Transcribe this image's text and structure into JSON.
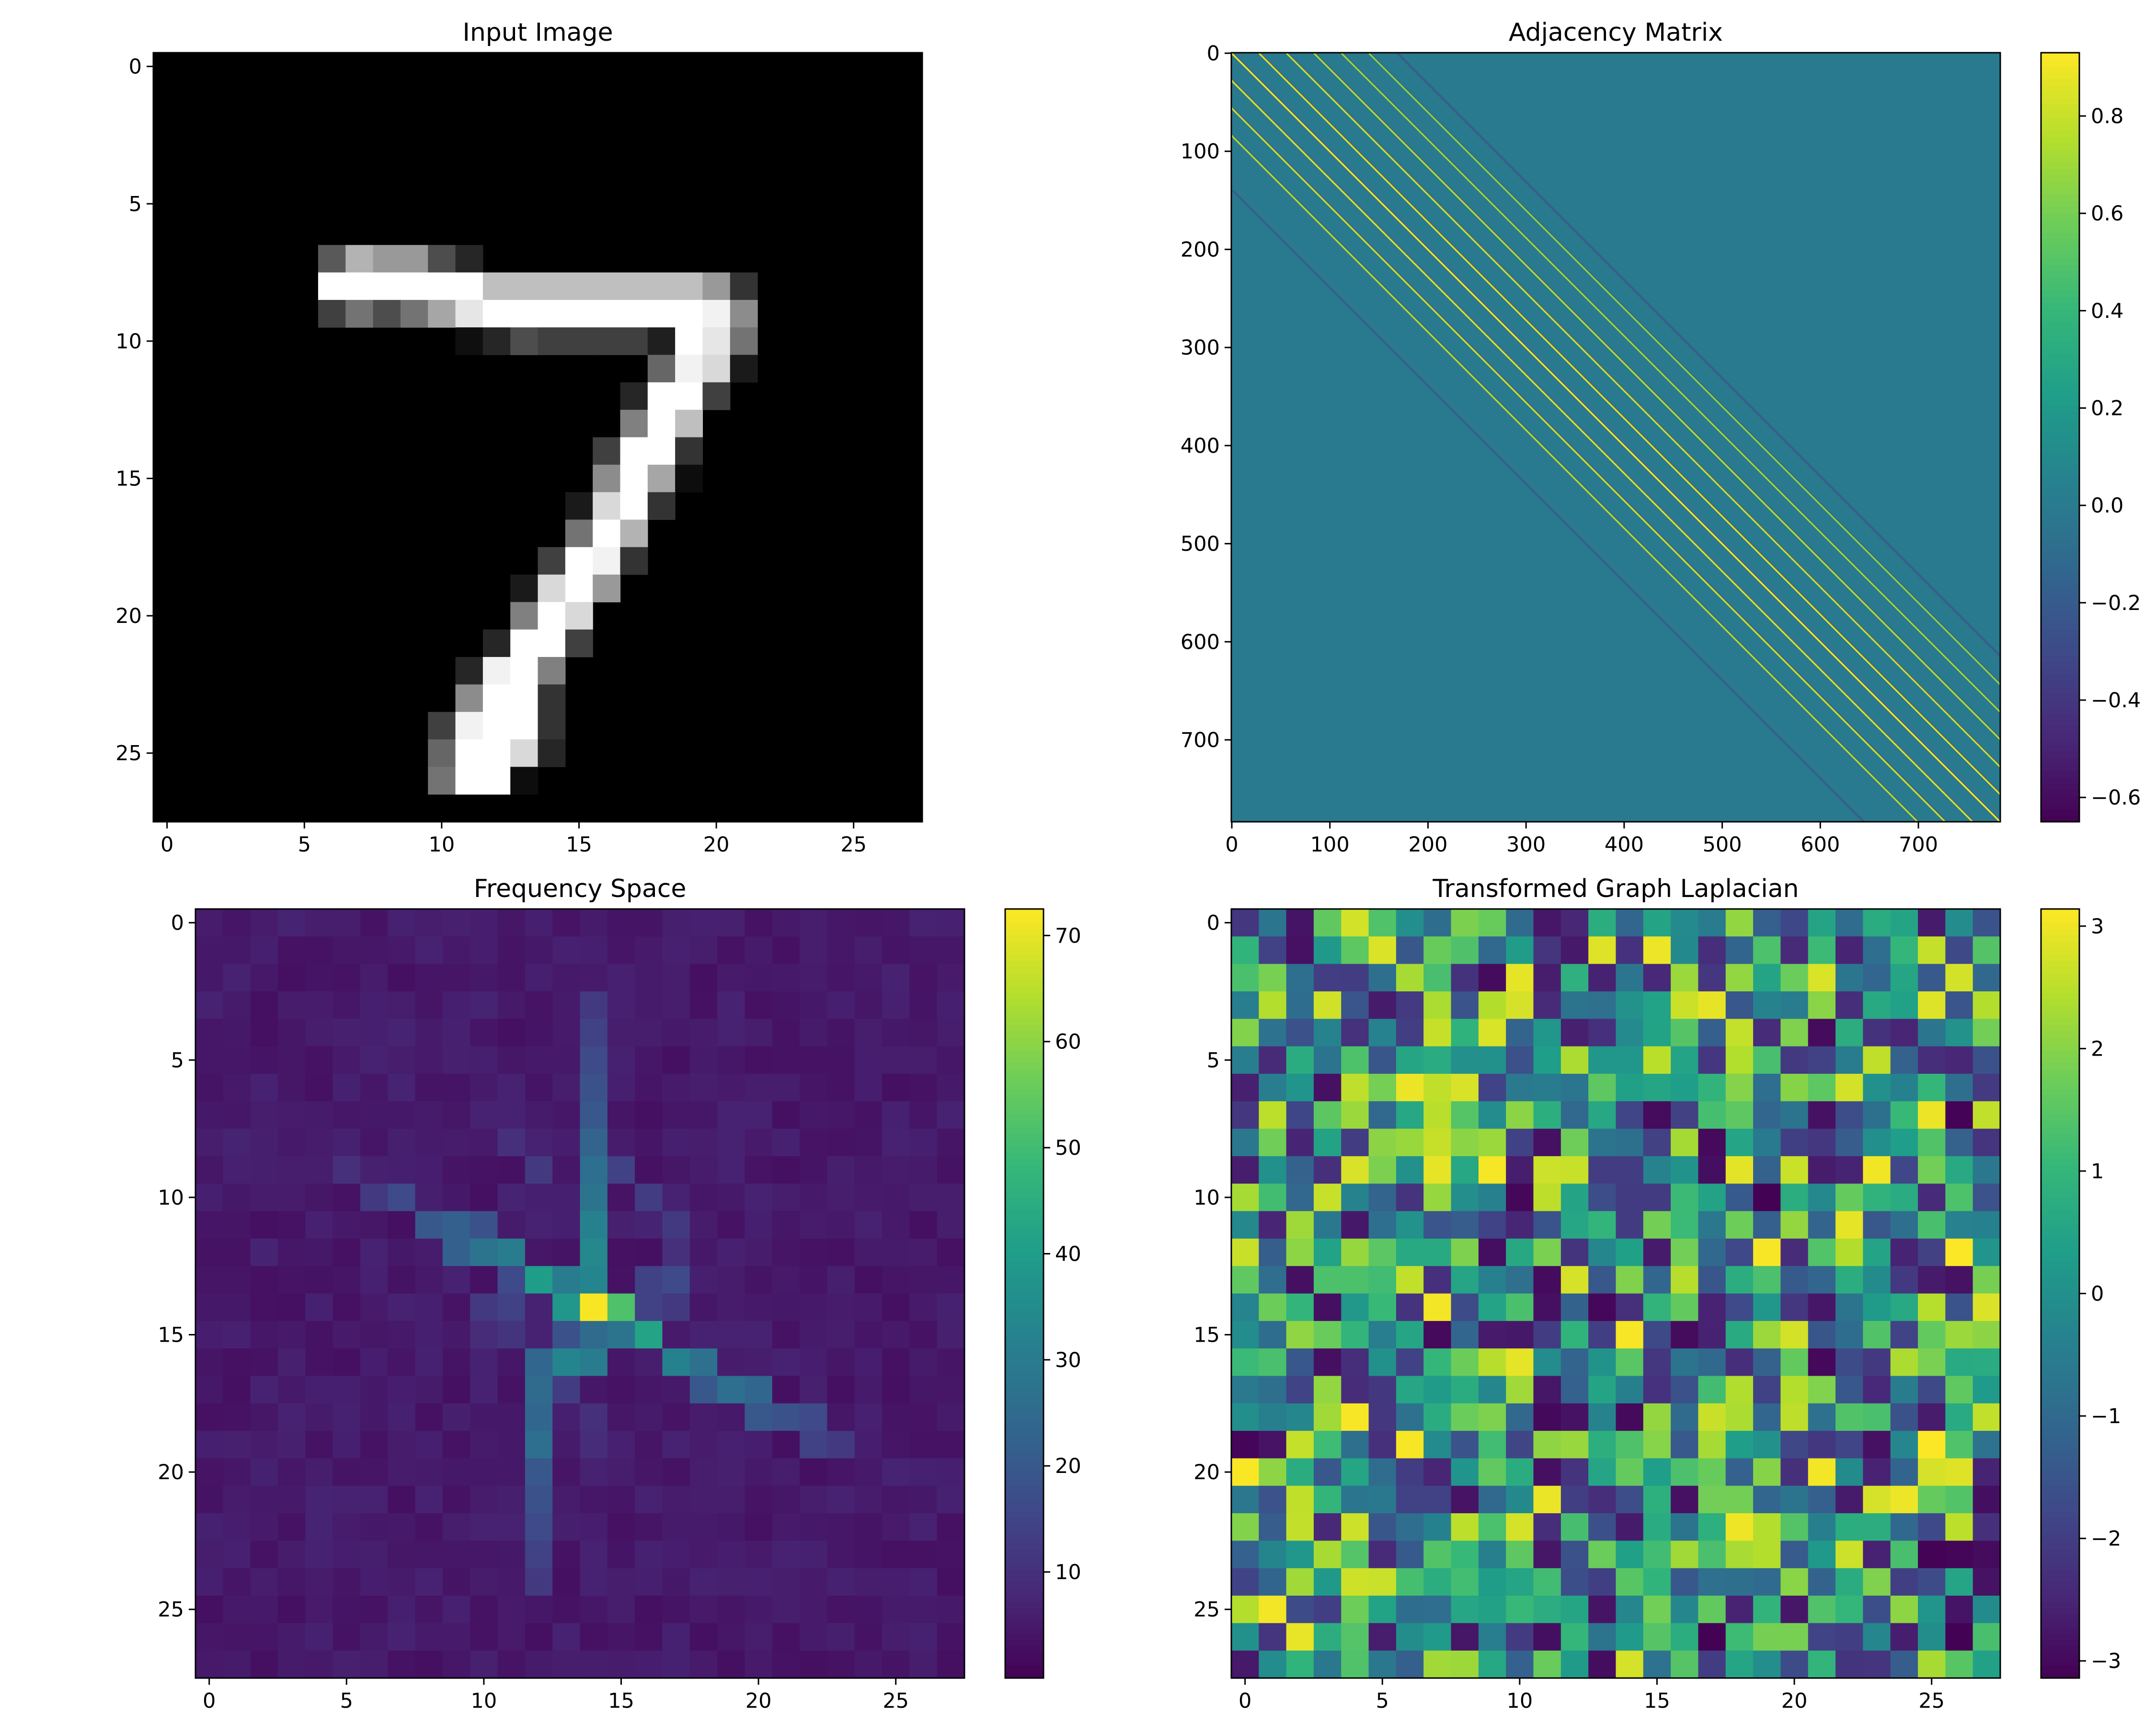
{
  "figure": {
    "background": "#ffffff"
  },
  "chart_data": [
    {
      "id": "input-image",
      "type": "heatmap",
      "title": "Input Image",
      "colormap": "gray",
      "grid": false,
      "legend": "none",
      "xlim": [
        -0.5,
        27.5
      ],
      "ylim": [
        27.5,
        -0.5
      ],
      "xticks": [
        0,
        5,
        10,
        15,
        20,
        25
      ],
      "xtick_labels": [
        "0",
        "5",
        "10",
        "15",
        "20",
        "25"
      ],
      "yticks": [
        0,
        5,
        10,
        15,
        20,
        25
      ],
      "ytick_labels": [
        "0",
        "5",
        "10",
        "15",
        "20",
        "25"
      ],
      "value_range": [
        0,
        1
      ],
      "rows": 28,
      "cols": 28,
      "nonzero_cells": [
        [
          7,
          6,
          0.35
        ],
        [
          7,
          7,
          0.7
        ],
        [
          7,
          8,
          0.6
        ],
        [
          7,
          9,
          0.6
        ],
        [
          7,
          10,
          0.3
        ],
        [
          7,
          11,
          0.15
        ],
        [
          8,
          6,
          1
        ],
        [
          8,
          7,
          1
        ],
        [
          8,
          8,
          1
        ],
        [
          8,
          9,
          1
        ],
        [
          8,
          10,
          1
        ],
        [
          8,
          11,
          1
        ],
        [
          8,
          12,
          0.75
        ],
        [
          8,
          13,
          0.75
        ],
        [
          8,
          14,
          0.75
        ],
        [
          8,
          15,
          0.75
        ],
        [
          8,
          16,
          0.75
        ],
        [
          8,
          17,
          0.75
        ],
        [
          8,
          18,
          0.75
        ],
        [
          8,
          19,
          0.75
        ],
        [
          8,
          20,
          0.6
        ],
        [
          8,
          21,
          0.2
        ],
        [
          9,
          6,
          0.25
        ],
        [
          9,
          7,
          0.45
        ],
        [
          9,
          8,
          0.3
        ],
        [
          9,
          9,
          0.45
        ],
        [
          9,
          10,
          0.65
        ],
        [
          9,
          11,
          0.9
        ],
        [
          9,
          12,
          1
        ],
        [
          9,
          13,
          1
        ],
        [
          9,
          14,
          1
        ],
        [
          9,
          15,
          1
        ],
        [
          9,
          16,
          1
        ],
        [
          9,
          17,
          1
        ],
        [
          9,
          18,
          1
        ],
        [
          9,
          19,
          1
        ],
        [
          9,
          20,
          0.95
        ],
        [
          9,
          21,
          0.55
        ],
        [
          10,
          11,
          0.06
        ],
        [
          10,
          12,
          0.15
        ],
        [
          10,
          13,
          0.3
        ],
        [
          10,
          14,
          0.25
        ],
        [
          10,
          15,
          0.25
        ],
        [
          10,
          16,
          0.25
        ],
        [
          10,
          17,
          0.25
        ],
        [
          10,
          18,
          0.12
        ],
        [
          10,
          19,
          1
        ],
        [
          10,
          20,
          0.9
        ],
        [
          10,
          21,
          0.45
        ],
        [
          11,
          18,
          0.4
        ],
        [
          11,
          19,
          0.95
        ],
        [
          11,
          20,
          0.85
        ],
        [
          11,
          21,
          0.1
        ],
        [
          12,
          17,
          0.15
        ],
        [
          12,
          18,
          1
        ],
        [
          12,
          19,
          1
        ],
        [
          12,
          20,
          0.25
        ],
        [
          13,
          17,
          0.5
        ],
        [
          13,
          18,
          1
        ],
        [
          13,
          19,
          0.75
        ],
        [
          14,
          16,
          0.25
        ],
        [
          14,
          17,
          1
        ],
        [
          14,
          18,
          1
        ],
        [
          14,
          19,
          0.2
        ],
        [
          15,
          16,
          0.55
        ],
        [
          15,
          17,
          1
        ],
        [
          15,
          18,
          0.65
        ],
        [
          15,
          19,
          0.05
        ],
        [
          16,
          15,
          0.1
        ],
        [
          16,
          16,
          0.85
        ],
        [
          16,
          17,
          1
        ],
        [
          16,
          18,
          0.2
        ],
        [
          17,
          15,
          0.45
        ],
        [
          17,
          16,
          1
        ],
        [
          17,
          17,
          0.7
        ],
        [
          18,
          14,
          0.25
        ],
        [
          18,
          15,
          1
        ],
        [
          18,
          16,
          0.95
        ],
        [
          18,
          17,
          0.2
        ],
        [
          19,
          13,
          0.1
        ],
        [
          19,
          14,
          0.85
        ],
        [
          19,
          15,
          1
        ],
        [
          19,
          16,
          0.6
        ],
        [
          20,
          13,
          0.5
        ],
        [
          20,
          14,
          1
        ],
        [
          20,
          15,
          0.85
        ],
        [
          21,
          12,
          0.15
        ],
        [
          21,
          13,
          1
        ],
        [
          21,
          14,
          1
        ],
        [
          21,
          15,
          0.25
        ],
        [
          22,
          11,
          0.15
        ],
        [
          22,
          12,
          0.95
        ],
        [
          22,
          13,
          1
        ],
        [
          22,
          14,
          0.5
        ],
        [
          23,
          11,
          0.55
        ],
        [
          23,
          12,
          1
        ],
        [
          23,
          13,
          1
        ],
        [
          23,
          14,
          0.2
        ],
        [
          24,
          10,
          0.25
        ],
        [
          24,
          11,
          0.95
        ],
        [
          24,
          12,
          1
        ],
        [
          24,
          13,
          1
        ],
        [
          24,
          14,
          0.2
        ],
        [
          25,
          10,
          0.4
        ],
        [
          25,
          11,
          1
        ],
        [
          25,
          12,
          1
        ],
        [
          25,
          13,
          0.85
        ],
        [
          25,
          14,
          0.15
        ],
        [
          26,
          10,
          0.45
        ],
        [
          26,
          11,
          1
        ],
        [
          26,
          12,
          1
        ],
        [
          26,
          13,
          0.05
        ]
      ]
    },
    {
      "id": "adjacency-matrix",
      "type": "heatmap",
      "title": "Adjacency Matrix",
      "colormap": "viridis",
      "grid": false,
      "legend": "colorbar-right",
      "xlim": [
        -0.5,
        783.5
      ],
      "ylim": [
        783.5,
        -0.5
      ],
      "xticks": [
        0,
        100,
        200,
        300,
        400,
        500,
        600,
        700
      ],
      "xtick_labels": [
        "0",
        "100",
        "200",
        "300",
        "400",
        "500",
        "600",
        "700"
      ],
      "yticks": [
        0,
        100,
        200,
        300,
        400,
        500,
        600,
        700
      ],
      "ytick_labels": [
        "0",
        "100",
        "200",
        "300",
        "400",
        "500",
        "600",
        "700"
      ],
      "value_range": [
        -0.65,
        0.93
      ],
      "background_value": 0.0,
      "diagonals": [
        {
          "offset": -84,
          "value": 0.75
        },
        {
          "offset": -56,
          "value": 0.8
        },
        {
          "offset": -28,
          "value": 0.85
        },
        {
          "offset": 0,
          "value": 0.93
        },
        {
          "offset": 28,
          "value": 0.85
        },
        {
          "offset": 56,
          "value": 0.8
        },
        {
          "offset": 84,
          "value": 0.75
        },
        {
          "offset": 112,
          "value": 0.7
        },
        {
          "offset": 140,
          "value": 0.65
        },
        {
          "offset": -140,
          "value": -0.1
        },
        {
          "offset": 168,
          "value": -0.1
        }
      ],
      "colorbar": {
        "ticks": [
          -0.6,
          -0.4,
          -0.2,
          0.0,
          0.2,
          0.4,
          0.6,
          0.8
        ],
        "tick_labels": [
          "−0.6",
          "−0.4",
          "−0.2",
          "0.0",
          "0.2",
          "0.4",
          "0.6",
          "0.8"
        ]
      }
    },
    {
      "id": "frequency-space",
      "type": "heatmap",
      "title": "Frequency Space",
      "colormap": "viridis",
      "grid": false,
      "legend": "colorbar-right",
      "xlim": [
        -0.5,
        27.5
      ],
      "ylim": [
        27.5,
        -0.5
      ],
      "xticks": [
        0,
        5,
        10,
        15,
        20,
        25
      ],
      "xtick_labels": [
        "0",
        "5",
        "10",
        "15",
        "20",
        "25"
      ],
      "yticks": [
        0,
        5,
        10,
        15,
        20,
        25
      ],
      "ytick_labels": [
        "0",
        "5",
        "10",
        "15",
        "20",
        "25"
      ],
      "value_range": [
        0,
        72.5
      ],
      "rows": 28,
      "cols": 28,
      "base_value": 3,
      "bright_cells": [
        [
          14,
          14,
          72
        ],
        [
          14,
          13,
          38
        ],
        [
          14,
          15,
          52
        ],
        [
          15,
          16,
          42
        ],
        [
          13,
          12,
          40
        ],
        [
          13,
          13,
          30
        ],
        [
          13,
          14,
          33
        ],
        [
          12,
          11,
          30
        ],
        [
          12,
          10,
          28
        ],
        [
          15,
          15,
          28
        ],
        [
          16,
          17,
          32
        ],
        [
          16,
          18,
          27
        ],
        [
          11,
          8,
          20
        ],
        [
          11,
          9,
          22
        ],
        [
          11,
          10,
          18
        ],
        [
          10,
          7,
          16
        ],
        [
          10,
          6,
          12
        ],
        [
          9,
          5,
          10
        ],
        [
          12,
          9,
          22
        ],
        [
          15,
          14,
          25
        ],
        [
          15,
          13,
          18
        ],
        [
          16,
          13,
          33
        ],
        [
          16,
          14,
          30
        ],
        [
          17,
          19,
          26
        ],
        [
          17,
          20,
          24
        ],
        [
          17,
          18,
          20
        ],
        [
          18,
          20,
          20
        ],
        [
          18,
          21,
          18
        ],
        [
          18,
          22,
          16
        ],
        [
          19,
          22,
          14
        ],
        [
          19,
          23,
          12
        ],
        [
          3,
          14,
          12
        ],
        [
          4,
          14,
          14
        ],
        [
          5,
          14,
          16
        ],
        [
          6,
          14,
          18
        ],
        [
          7,
          14,
          20
        ],
        [
          8,
          14,
          23
        ],
        [
          9,
          14,
          26
        ],
        [
          10,
          14,
          28
        ],
        [
          11,
          14,
          32
        ],
        [
          12,
          14,
          34
        ],
        [
          16,
          12,
          24
        ],
        [
          17,
          12,
          25
        ],
        [
          18,
          12,
          24
        ],
        [
          19,
          12,
          26
        ],
        [
          20,
          12,
          20
        ],
        [
          21,
          12,
          18
        ],
        [
          22,
          12,
          16
        ],
        [
          23,
          12,
          14
        ],
        [
          24,
          12,
          12
        ],
        [
          9,
          15,
          14
        ],
        [
          10,
          16,
          13
        ],
        [
          11,
          17,
          12
        ],
        [
          8,
          11,
          10
        ],
        [
          9,
          12,
          12
        ],
        [
          13,
          11,
          16
        ],
        [
          14,
          10,
          12
        ],
        [
          14,
          11,
          14
        ],
        [
          15,
          10,
          9
        ],
        [
          15,
          11,
          11
        ],
        [
          17,
          13,
          13
        ],
        [
          18,
          14,
          10
        ],
        [
          19,
          14,
          9
        ],
        [
          14,
          16,
          14
        ],
        [
          14,
          17,
          12
        ],
        [
          13,
          16,
          14
        ],
        [
          13,
          17,
          16
        ],
        [
          12,
          17,
          10
        ]
      ],
      "colorbar": {
        "ticks": [
          10,
          20,
          30,
          40,
          50,
          60,
          70
        ],
        "tick_labels": [
          "10",
          "20",
          "30",
          "40",
          "50",
          "60",
          "70"
        ]
      }
    },
    {
      "id": "transformed-graph-laplacian",
      "type": "heatmap",
      "title": "Transformed Graph Laplacian",
      "colormap": "viridis",
      "grid": false,
      "legend": "colorbar-right",
      "xlim": [
        -0.5,
        27.5
      ],
      "ylim": [
        27.5,
        -0.5
      ],
      "xticks": [
        0,
        5,
        10,
        15,
        20,
        25
      ],
      "xtick_labels": [
        "0",
        "5",
        "10",
        "15",
        "20",
        "25"
      ],
      "yticks": [
        0,
        5,
        10,
        15,
        20,
        25
      ],
      "ytick_labels": [
        "0",
        "5",
        "10",
        "15",
        "20",
        "25"
      ],
      "value_range": [
        -3.14,
        3.14
      ],
      "rows": 28,
      "cols": 28,
      "values_note_seed": 7,
      "colorbar": {
        "ticks": [
          -3,
          -2,
          -1,
          0,
          1,
          2,
          3
        ],
        "tick_labels": [
          "−3",
          "−2",
          "−1",
          "0",
          "1",
          "2",
          "3"
        ]
      }
    }
  ]
}
